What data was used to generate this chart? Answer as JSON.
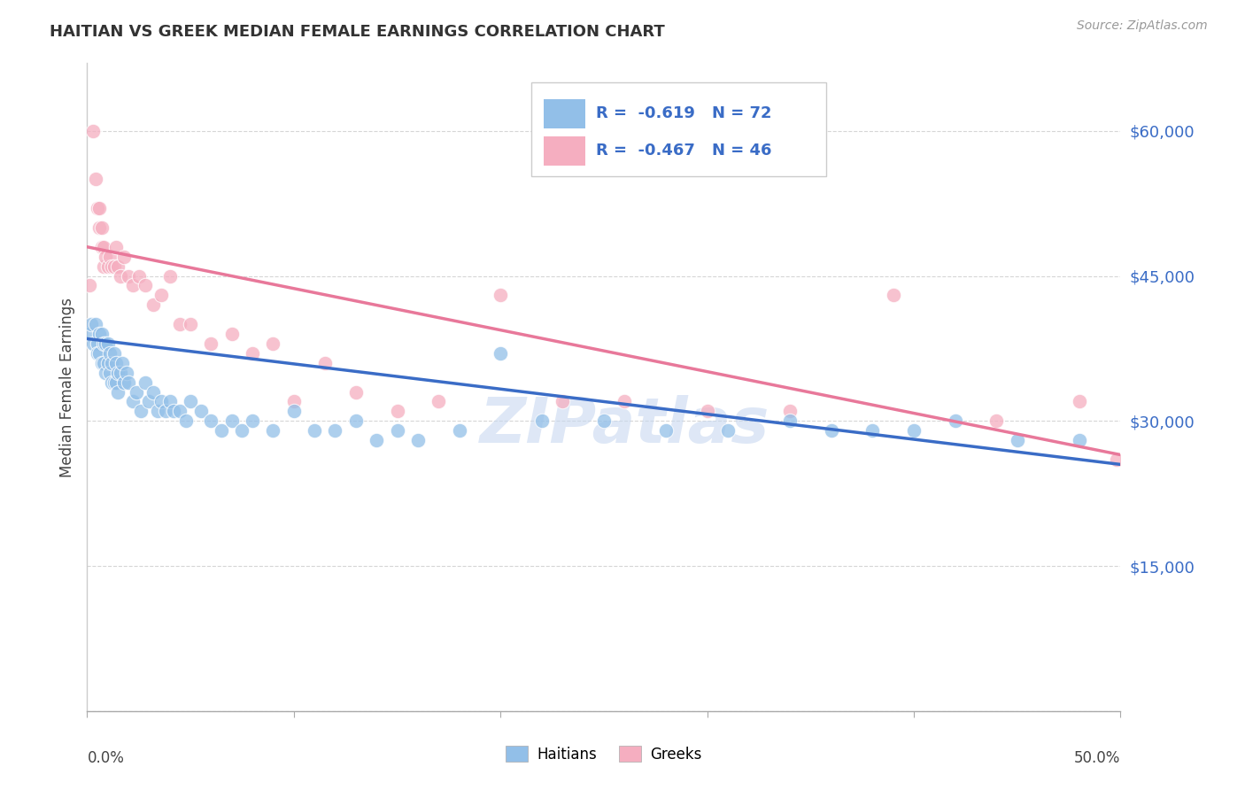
{
  "title": "HAITIAN VS GREEK MEDIAN FEMALE EARNINGS CORRELATION CHART",
  "source": "Source: ZipAtlas.com",
  "ylabel": "Median Female Earnings",
  "yticks": [
    0,
    15000,
    30000,
    45000,
    60000
  ],
  "ytick_labels": [
    "",
    "$15,000",
    "$30,000",
    "$45,000",
    "$60,000"
  ],
  "ytick_color": "#3a6cc6",
  "xtick_labels_show": [
    "0.0%",
    "50.0%"
  ],
  "xlim": [
    0.0,
    0.5
  ],
  "ylim": [
    0,
    67000
  ],
  "background_color": "#ffffff",
  "grid_color": "#cccccc",
  "haitians_color": "#92bfe8",
  "greeks_color": "#f5aec0",
  "haitians_line_color": "#3a6cc6",
  "greeks_line_color": "#e8789a",
  "legend_R_haitians": "-0.619",
  "legend_N_haitians": "72",
  "legend_R_greeks": "-0.467",
  "legend_N_greeks": "46",
  "haitians_x": [
    0.001,
    0.002,
    0.003,
    0.004,
    0.005,
    0.005,
    0.006,
    0.006,
    0.007,
    0.007,
    0.008,
    0.008,
    0.009,
    0.009,
    0.01,
    0.01,
    0.011,
    0.011,
    0.012,
    0.012,
    0.013,
    0.013,
    0.014,
    0.014,
    0.015,
    0.015,
    0.016,
    0.017,
    0.018,
    0.019,
    0.02,
    0.022,
    0.024,
    0.026,
    0.028,
    0.03,
    0.032,
    0.034,
    0.036,
    0.038,
    0.04,
    0.042,
    0.045,
    0.048,
    0.05,
    0.055,
    0.06,
    0.065,
    0.07,
    0.075,
    0.08,
    0.09,
    0.1,
    0.11,
    0.12,
    0.13,
    0.14,
    0.15,
    0.16,
    0.18,
    0.2,
    0.22,
    0.25,
    0.28,
    0.31,
    0.34,
    0.36,
    0.38,
    0.4,
    0.42,
    0.45,
    0.48
  ],
  "haitians_y": [
    39000,
    40000,
    38000,
    40000,
    38000,
    37000,
    39000,
    37000,
    39000,
    36000,
    38000,
    36000,
    38000,
    35000,
    38000,
    36000,
    37000,
    35000,
    36000,
    34000,
    37000,
    34000,
    36000,
    34000,
    35000,
    33000,
    35000,
    36000,
    34000,
    35000,
    34000,
    32000,
    33000,
    31000,
    34000,
    32000,
    33000,
    31000,
    32000,
    31000,
    32000,
    31000,
    31000,
    30000,
    32000,
    31000,
    30000,
    29000,
    30000,
    29000,
    30000,
    29000,
    31000,
    29000,
    29000,
    30000,
    28000,
    29000,
    28000,
    29000,
    37000,
    30000,
    30000,
    29000,
    29000,
    30000,
    29000,
    29000,
    29000,
    30000,
    28000,
    28000
  ],
  "greeks_x": [
    0.001,
    0.003,
    0.004,
    0.005,
    0.006,
    0.006,
    0.007,
    0.007,
    0.008,
    0.008,
    0.009,
    0.01,
    0.011,
    0.012,
    0.013,
    0.014,
    0.015,
    0.016,
    0.018,
    0.02,
    0.022,
    0.025,
    0.028,
    0.032,
    0.036,
    0.04,
    0.045,
    0.05,
    0.06,
    0.07,
    0.08,
    0.09,
    0.1,
    0.115,
    0.13,
    0.15,
    0.17,
    0.2,
    0.23,
    0.26,
    0.3,
    0.34,
    0.39,
    0.44,
    0.48,
    0.498
  ],
  "greeks_y": [
    44000,
    60000,
    55000,
    52000,
    52000,
    50000,
    50000,
    48000,
    48000,
    46000,
    47000,
    46000,
    47000,
    46000,
    46000,
    48000,
    46000,
    45000,
    47000,
    45000,
    44000,
    45000,
    44000,
    42000,
    43000,
    45000,
    40000,
    40000,
    38000,
    39000,
    37000,
    38000,
    32000,
    36000,
    33000,
    31000,
    32000,
    43000,
    32000,
    32000,
    31000,
    31000,
    43000,
    30000,
    32000,
    26000
  ],
  "watermark": "ZIPatlas",
  "watermark_color": "#c8d8f0",
  "haitian_line_x0": 0.0,
  "haitian_line_x1": 0.5,
  "haitian_line_y0": 38500,
  "haitian_line_y1": 25500,
  "greek_line_x0": 0.0,
  "greek_line_x1": 0.5,
  "greek_line_y0": 48000,
  "greek_line_y1": 26500
}
